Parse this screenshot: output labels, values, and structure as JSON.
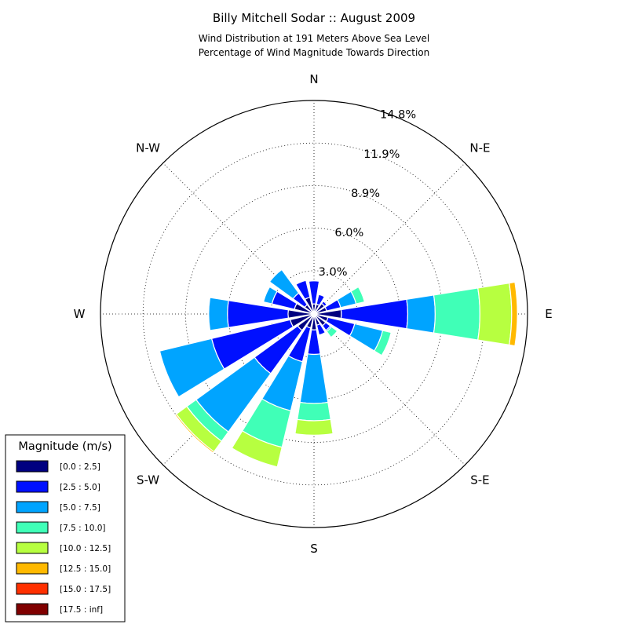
{
  "chart_data": {
    "type": "windrose",
    "title": "Billy Mitchell Sodar :: August 2009",
    "subtitle_lines": [
      "Wind Distribution at 191 Meters Above Sea Level",
      "Percentage of Wind Magnitude Towards Direction"
    ],
    "direction_labels": [
      {
        "angle": 0,
        "text": "N"
      },
      {
        "angle": 45,
        "text": "N-E"
      },
      {
        "angle": 90,
        "text": "E"
      },
      {
        "angle": 135,
        "text": "S-E"
      },
      {
        "angle": 180,
        "text": "S"
      },
      {
        "angle": 225,
        "text": "S-W"
      },
      {
        "angle": 270,
        "text": "W"
      },
      {
        "angle": 315,
        "text": "N-W"
      }
    ],
    "radial_axis": {
      "max": 14.8,
      "ticks": [
        3.0,
        5.95,
        8.9,
        11.85,
        14.8
      ],
      "tick_labels": [
        "3.0%",
        "6.0%",
        "8.9%",
        "11.9%",
        "14.8%"
      ],
      "grid": true
    },
    "legend": {
      "title": "Magnitude (m/s)",
      "placement": "bottom-left",
      "bins": [
        {
          "label": "[0.0 : 2.5]",
          "color": "#000080"
        },
        {
          "label": "[2.5 : 5.0]",
          "color": "#0010ff"
        },
        {
          "label": "[5.0 : 7.5]",
          "color": "#00a4ff"
        },
        {
          "label": "[7.5 : 10.0]",
          "color": "#40ffb7"
        },
        {
          "label": "[10.0 : 12.5]",
          "color": "#b7ff40"
        },
        {
          "label": "[12.5 : 15.0]",
          "color": "#ffb900"
        },
        {
          "label": "[15.0 : 17.5]",
          "color": "#ff3000"
        },
        {
          "label": "[17.5 : inf]",
          "color": "#800000"
        }
      ]
    },
    "sector_width_deg": 18,
    "sectors": [
      {
        "direction": 0,
        "cumulative": [
          0.7,
          2.3
        ]
      },
      {
        "direction": 22.5,
        "cumulative": [
          0.7,
          1.4
        ]
      },
      {
        "direction": 45,
        "cumulative": [
          0.9,
          1.1
        ]
      },
      {
        "direction": 67.5,
        "cumulative": [
          0.9,
          1.9,
          3.0,
          3.6
        ]
      },
      {
        "direction": 90,
        "cumulative": [
          1.9,
          6.5,
          8.4,
          11.5,
          13.7,
          14.1
        ]
      },
      {
        "direction": 112.5,
        "cumulative": [
          1.0,
          2.9,
          4.9,
          5.5
        ]
      },
      {
        "direction": 135,
        "cumulative": [
          1.0,
          1.4,
          1.5,
          2.0
        ]
      },
      {
        "direction": 157.5,
        "cumulative": [
          0.8,
          1.5
        ]
      },
      {
        "direction": 180,
        "cumulative": [
          1.1,
          2.8,
          6.2,
          7.4,
          8.4
        ]
      },
      {
        "direction": 202.5,
        "cumulative": [
          1.0,
          3.4,
          6.9,
          9.5,
          10.9
        ]
      },
      {
        "direction": 225,
        "cumulative": [
          1.4,
          5.1,
          10.1,
          10.9,
          11.8,
          11.9
        ]
      },
      {
        "direction": 247.5,
        "cumulative": [
          1.7,
          7.3,
          11.0
        ]
      },
      {
        "direction": 270,
        "cumulative": [
          1.8,
          6.0,
          7.3
        ]
      },
      {
        "direction": 292.5,
        "cumulative": [
          1.4,
          3.0,
          3.6
        ]
      },
      {
        "direction": 315,
        "cumulative": [
          0.8,
          1.8,
          3.8
        ]
      },
      {
        "direction": 337.5,
        "cumulative": [
          1.2,
          2.4
        ]
      }
    ]
  }
}
